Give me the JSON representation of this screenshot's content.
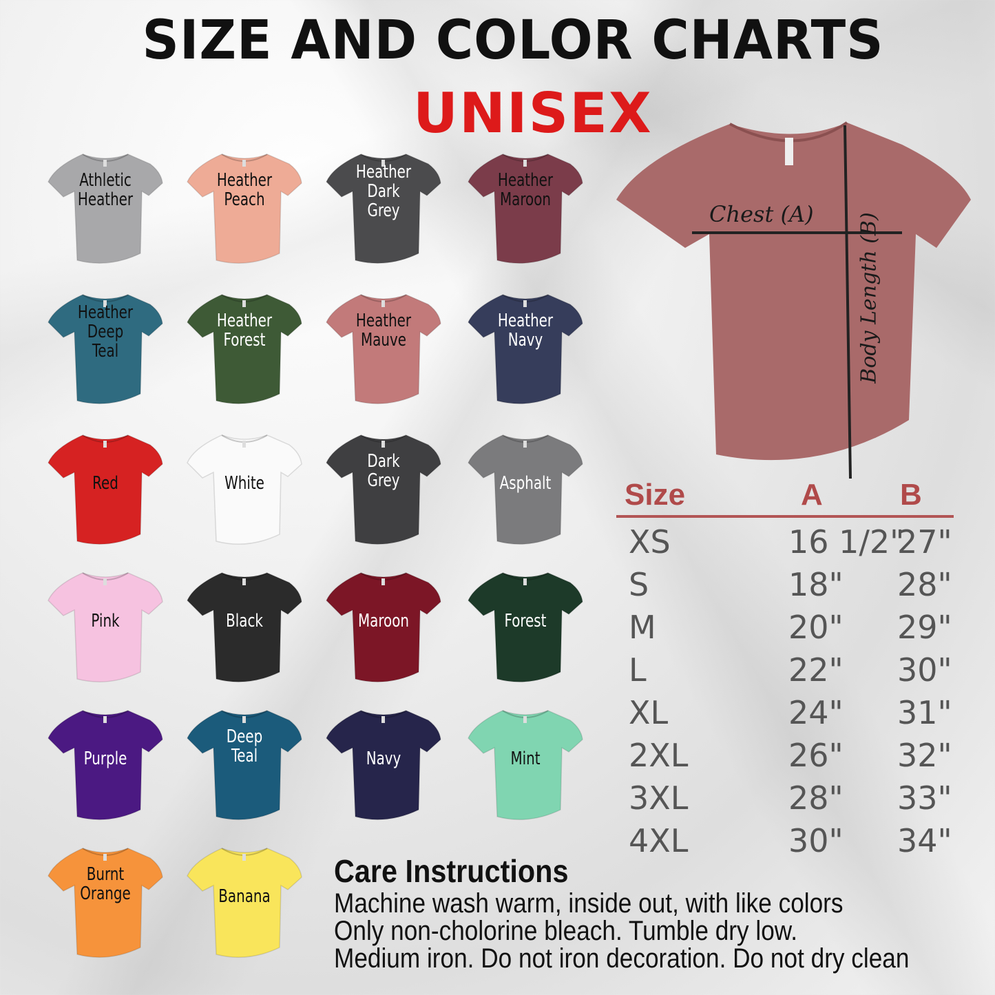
{
  "title": "SIZE AND COLOR CHARTS",
  "subtitle": "UNISEX",
  "colors": [
    {
      "name": [
        "Athletic",
        "Heather"
      ],
      "hex": "#a8a8aa",
      "text": "#111"
    },
    {
      "name": [
        "Heather",
        "Peach"
      ],
      "hex": "#eeab96",
      "text": "#111"
    },
    {
      "name": [
        "Heather",
        "Dark",
        "Grey"
      ],
      "hex": "#4b4b4d",
      "text": "#fff"
    },
    {
      "name": [
        "Heather",
        "Maroon"
      ],
      "hex": "#7b3c4a",
      "text": "#111"
    },
    {
      "name": [
        "Heather",
        "Deep",
        "Teal"
      ],
      "hex": "#2f6b80",
      "text": "#111"
    },
    {
      "name": [
        "Heather",
        "Forest"
      ],
      "hex": "#3e5a36",
      "text": "#fff"
    },
    {
      "name": [
        "Heather",
        "Mauve"
      ],
      "hex": "#c27a7a",
      "text": "#111"
    },
    {
      "name": [
        "Heather",
        "Navy"
      ],
      "hex": "#363d5b",
      "text": "#fff"
    },
    {
      "name": [
        "Red"
      ],
      "hex": "#d62222",
      "text": "#111"
    },
    {
      "name": [
        "White"
      ],
      "hex": "#fafafa",
      "text": "#111"
    },
    {
      "name": [
        "Dark",
        "Grey"
      ],
      "hex": "#3f3f41",
      "text": "#fff"
    },
    {
      "name": [
        "Asphalt"
      ],
      "hex": "#7b7b7d",
      "text": "#fff"
    },
    {
      "name": [
        "Pink"
      ],
      "hex": "#f6c2e0",
      "text": "#111"
    },
    {
      "name": [
        "Black"
      ],
      "hex": "#2b2b2b",
      "text": "#fff"
    },
    {
      "name": [
        "Maroon"
      ],
      "hex": "#7c1626",
      "text": "#fff"
    },
    {
      "name": [
        "Forest"
      ],
      "hex": "#1d3a29",
      "text": "#fff"
    },
    {
      "name": [
        "Purple"
      ],
      "hex": "#4b1982",
      "text": "#fff"
    },
    {
      "name": [
        "Deep",
        "Teal"
      ],
      "hex": "#1b5b7b",
      "text": "#fff"
    },
    {
      "name": [
        "Navy"
      ],
      "hex": "#26254b",
      "text": "#fff"
    },
    {
      "name": [
        "Mint"
      ],
      "hex": "#80d5b1",
      "text": "#111"
    },
    {
      "name": [
        "Burnt",
        "Orange"
      ],
      "hex": "#f6933b",
      "text": "#111"
    },
    {
      "name": [
        "Banana"
      ],
      "hex": "#f9e55b",
      "text": "#111"
    }
  ],
  "diagram": {
    "shirt_color": "#a96a6a",
    "chest_label": "Chest (A)",
    "length_label": "Body Length (B)"
  },
  "size_table": {
    "headers": [
      "Size",
      "A",
      "B"
    ],
    "rows": [
      [
        "XS",
        "16 1/2\"",
        "27\""
      ],
      [
        "S",
        "18\"",
        "28\""
      ],
      [
        "M",
        "20\"",
        "29\""
      ],
      [
        "L",
        "22\"",
        "30\""
      ],
      [
        "XL",
        "24\"",
        "31\""
      ],
      [
        "2XL",
        "26\"",
        "32\""
      ],
      [
        "3XL",
        "28\"",
        "33\""
      ],
      [
        "4XL",
        "30\"",
        "34\""
      ]
    ]
  },
  "care": {
    "heading": "Care Instructions",
    "lines": [
      "Machine wash warm, inside out, with like colors",
      "Only non-cholorine bleach. Tumble dry low.",
      "Medium iron. Do not iron decoration. Do not dry clean"
    ]
  }
}
